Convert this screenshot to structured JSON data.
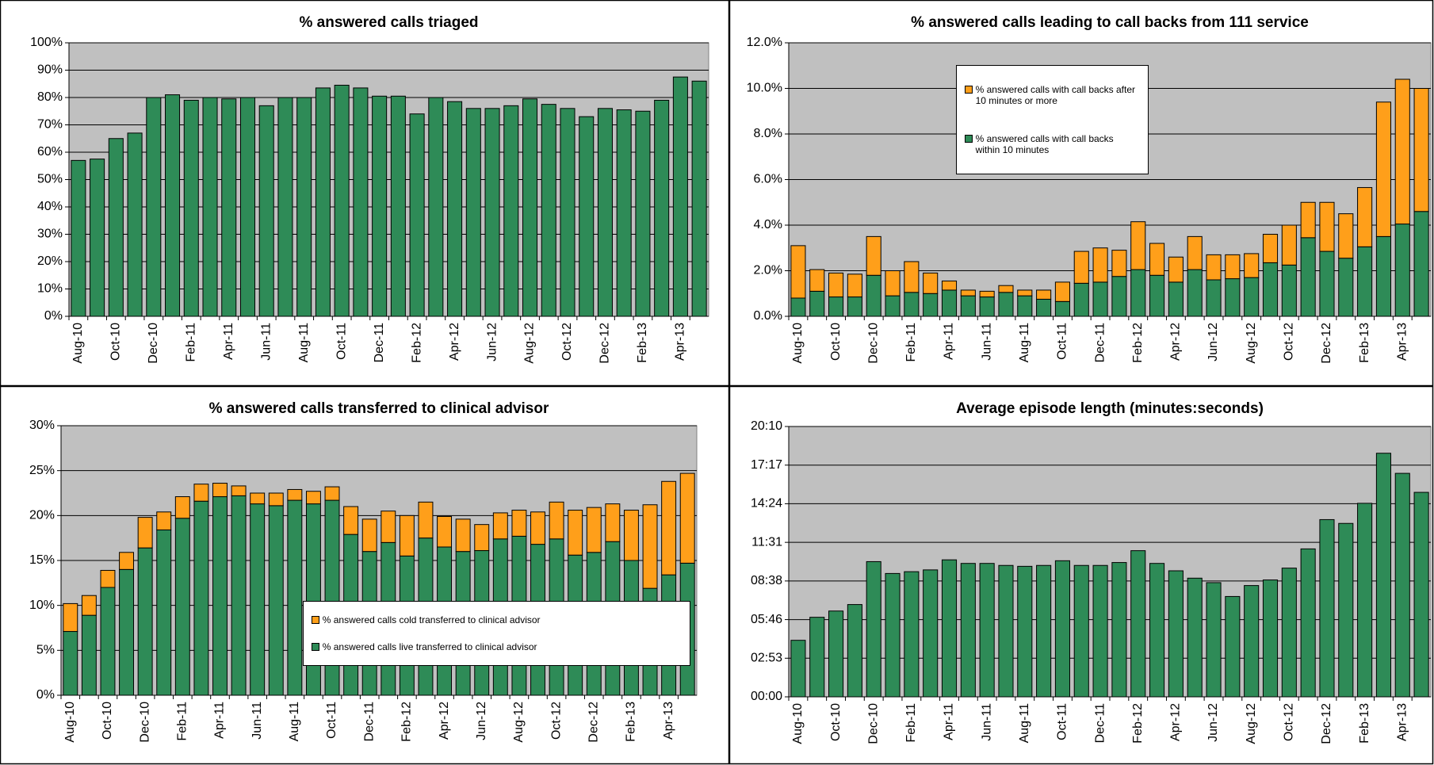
{
  "chart_data": [
    {
      "type": "bar",
      "title": "% answered calls triaged",
      "categories": [
        "Aug-10",
        null,
        "Oct-10",
        null,
        "Dec-10",
        null,
        "Feb-11",
        null,
        "Apr-11",
        null,
        "Jun-11",
        null,
        "Aug-11",
        null,
        "Oct-11",
        null,
        "Dec-11",
        null,
        "Feb-12",
        null,
        "Apr-12",
        null,
        "Jun-12",
        null,
        "Aug-12",
        null,
        "Oct-12",
        null,
        "Dec-12",
        null,
        "Feb-13",
        null,
        "Apr-13",
        null
      ],
      "series": [
        {
          "color": "#2e8b57",
          "values": [
            57,
            57.5,
            65,
            67,
            80,
            81,
            79,
            80,
            79.5,
            80,
            77,
            80,
            80,
            83.5,
            84.5,
            83.5,
            80.5,
            80.5,
            74,
            80,
            78.5,
            76,
            76,
            77,
            79.5,
            77.5,
            76,
            73,
            76,
            75.5,
            75,
            79,
            87.5,
            86
          ]
        }
      ],
      "ylim": [
        0,
        100
      ],
      "yticks": [
        {
          "value": 0,
          "label": "0%"
        },
        {
          "value": 10,
          "label": "10%"
        },
        {
          "value": 20,
          "label": "20%"
        },
        {
          "value": 30,
          "label": "30%"
        },
        {
          "value": 40,
          "label": "40%"
        },
        {
          "value": 50,
          "label": "50%"
        },
        {
          "value": 60,
          "label": "60%"
        },
        {
          "value": 70,
          "label": "70%"
        },
        {
          "value": 80,
          "label": "80%"
        },
        {
          "value": 90,
          "label": "90%"
        },
        {
          "value": 100,
          "label": "100%"
        }
      ],
      "grid": true
    },
    {
      "type": "stacked-bar",
      "title": "% answered calls leading to call backs from 111 service",
      "categories": [
        "Aug-10",
        null,
        "Oct-10",
        null,
        "Dec-10",
        null,
        "Feb-11",
        null,
        "Apr-11",
        null,
        "Jun-11",
        null,
        "Aug-11",
        null,
        "Oct-11",
        null,
        "Dec-11",
        null,
        "Feb-12",
        null,
        "Apr-12",
        null,
        "Jun-12",
        null,
        "Aug-12",
        null,
        "Oct-12",
        null,
        "Dec-12",
        null,
        "Feb-13",
        null,
        "Apr-13",
        null
      ],
      "series": [
        {
          "name": "% answered calls with call backs within 10 minutes",
          "color": "#2e8b57",
          "values": [
            0.8,
            1.1,
            0.85,
            0.85,
            1.8,
            0.9,
            1.05,
            1.0,
            1.15,
            0.9,
            0.85,
            1.05,
            0.9,
            0.75,
            0.65,
            1.45,
            1.5,
            1.75,
            2.05,
            1.8,
            1.5,
            2.05,
            1.6,
            1.65,
            1.7,
            2.35,
            2.25,
            3.45,
            2.85,
            2.55,
            3.05,
            3.5,
            4.05,
            4.6
          ]
        },
        {
          "name": "% answered calls with call backs after 10 minutes or more",
          "color": "#ff9f1a",
          "values": [
            2.3,
            0.95,
            1.05,
            1.0,
            1.7,
            1.1,
            1.35,
            0.9,
            0.4,
            0.25,
            0.25,
            0.3,
            0.25,
            0.4,
            0.85,
            1.4,
            1.5,
            1.15,
            2.1,
            1.4,
            1.1,
            1.45,
            1.1,
            1.05,
            1.05,
            1.25,
            1.75,
            1.55,
            2.15,
            1.95,
            2.6,
            5.9,
            6.35,
            5.4
          ]
        }
      ],
      "ylim": [
        0,
        12
      ],
      "yticks": [
        {
          "value": 0,
          "label": "0.0%"
        },
        {
          "value": 2,
          "label": "2.0%"
        },
        {
          "value": 4,
          "label": "4.0%"
        },
        {
          "value": 6,
          "label": "6.0%"
        },
        {
          "value": 8,
          "label": "8.0%"
        },
        {
          "value": 10,
          "label": "10.0%"
        },
        {
          "value": 12,
          "label": "12.0%"
        }
      ],
      "grid": true,
      "legend": "upper-center"
    },
    {
      "type": "stacked-bar",
      "title": "% answered calls transferred to clinical advisor",
      "categories": [
        "Aug-10",
        null,
        "Oct-10",
        null,
        "Dec-10",
        null,
        "Feb-11",
        null,
        "Apr-11",
        null,
        "Jun-11",
        null,
        "Aug-11",
        null,
        "Oct-11",
        null,
        "Dec-11",
        null,
        "Feb-12",
        null,
        "Apr-12",
        null,
        "Jun-12",
        null,
        "Aug-12",
        null,
        "Oct-12",
        null,
        "Dec-12",
        null,
        "Feb-13",
        null,
        "Apr-13",
        null
      ],
      "series": [
        {
          "name": "% answered calls live transferred to clinical advisor",
          "color": "#2e8b57",
          "values": [
            7.1,
            8.9,
            12.0,
            14.0,
            16.4,
            18.4,
            19.7,
            21.6,
            22.1,
            22.2,
            21.3,
            21.1,
            21.7,
            21.3,
            21.7,
            17.9,
            16.0,
            17.0,
            15.5,
            17.5,
            16.5,
            16.0,
            16.1,
            17.4,
            17.7,
            16.8,
            17.4,
            15.6,
            15.9,
            17.1,
            15.0,
            11.9,
            13.4,
            14.7
          ]
        },
        {
          "name": "% answered calls cold transferred to clinical advisor",
          "color": "#ff9f1a",
          "values": [
            3.1,
            2.2,
            1.9,
            1.9,
            3.4,
            2.0,
            2.4,
            1.9,
            1.5,
            1.1,
            1.2,
            1.4,
            1.2,
            1.4,
            1.5,
            3.1,
            3.6,
            3.5,
            4.5,
            4.0,
            3.4,
            3.6,
            2.9,
            2.9,
            2.9,
            3.6,
            4.1,
            5.0,
            5.0,
            4.2,
            5.6,
            9.3,
            10.4,
            10.0
          ]
        }
      ],
      "ylim": [
        0,
        30
      ],
      "yticks": [
        {
          "value": 0,
          "label": "0%"
        },
        {
          "value": 5,
          "label": "5%"
        },
        {
          "value": 10,
          "label": "10%"
        },
        {
          "value": 15,
          "label": "15%"
        },
        {
          "value": 20,
          "label": "20%"
        },
        {
          "value": 25,
          "label": "25%"
        },
        {
          "value": 30,
          "label": "30%"
        }
      ],
      "grid": true,
      "legend": "lower-right"
    },
    {
      "type": "bar",
      "title": "Average episode length (minutes:seconds)",
      "categories": [
        "Aug-10",
        null,
        "Oct-10",
        null,
        "Dec-10",
        null,
        "Feb-11",
        null,
        "Apr-11",
        null,
        "Jun-11",
        null,
        "Aug-11",
        null,
        "Oct-11",
        null,
        "Dec-11",
        null,
        "Feb-12",
        null,
        "Apr-12",
        null,
        "Jun-12",
        null,
        "Aug-12",
        null,
        "Oct-12",
        null,
        "Dec-12",
        null,
        "Feb-13",
        null,
        "Apr-13",
        null
      ],
      "series": [
        {
          "color": "#2e8b57",
          "values": [
            253,
            356,
            384,
            413,
            605,
            552,
            560,
            568,
            613,
            597,
            597,
            588,
            584,
            588,
            609,
            588,
            588,
            601,
            654,
            597,
            564,
            531,
            511,
            449,
            498,
            523,
            576,
            662,
            793,
            776,
            866,
            1090,
            1000,
            915
          ]
        }
      ],
      "ylim": [
        0,
        1209.6
      ],
      "yticks": [
        {
          "value": 0,
          "label": "00:00"
        },
        {
          "value": 172.8,
          "label": "02:53"
        },
        {
          "value": 345.6,
          "label": "05:46"
        },
        {
          "value": 518.4,
          "label": "08:38"
        },
        {
          "value": 691.2,
          "label": "11:31"
        },
        {
          "value": 864,
          "label": "14:24"
        },
        {
          "value": 1036.8,
          "label": "17:17"
        },
        {
          "value": 1209.6,
          "label": "20:10"
        }
      ],
      "grid": true
    }
  ]
}
